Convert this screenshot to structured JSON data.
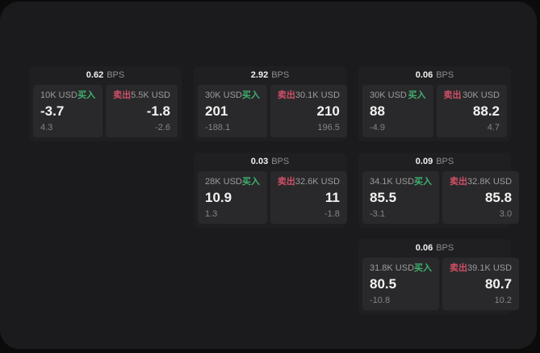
{
  "labels": {
    "bps_unit": "BPS",
    "buy": "买入",
    "sell": "卖出"
  },
  "colors": {
    "outer_background": "#0b0b0c",
    "page_background": "#1b1b1d",
    "card_background": "#1f1f21",
    "panel_background": "#29292b",
    "buy_accent": "#3fb06e",
    "sell_accent": "#d05068",
    "value_text": "#f2f2f2",
    "label_text": "#9b9b9b",
    "sub_text": "#858585"
  },
  "cards": [
    {
      "bps": "0.62",
      "buy": {
        "amount": "10K USD",
        "price": "-3.7",
        "delta": "4.3"
      },
      "sell": {
        "amount": "5.5K USD",
        "price": "-1.8",
        "delta": "-2.6"
      }
    },
    {
      "bps": "2.92",
      "buy": {
        "amount": "30K USD",
        "price": "201",
        "delta": "-188.1"
      },
      "sell": {
        "amount": "30.1K USD",
        "price": "210",
        "delta": "196.5"
      }
    },
    {
      "bps": "0.06",
      "buy": {
        "amount": "30K USD",
        "price": "88",
        "delta": "-4.9"
      },
      "sell": {
        "amount": "30K USD",
        "price": "88.2",
        "delta": "4.7"
      }
    },
    {
      "bps": "0.03",
      "buy": {
        "amount": "28K USD",
        "price": "10.9",
        "delta": "1.3"
      },
      "sell": {
        "amount": "32.6K USD",
        "price": "11",
        "delta": "-1.8"
      }
    },
    {
      "bps": "0.09",
      "buy": {
        "amount": "34.1K USD",
        "price": "85.5",
        "delta": "-3.1"
      },
      "sell": {
        "amount": "32.8K USD",
        "price": "85.8",
        "delta": "3.0"
      }
    },
    {
      "bps": "0.06",
      "buy": {
        "amount": "31.8K USD",
        "price": "80.5",
        "delta": "-10.8"
      },
      "sell": {
        "amount": "39.1K USD",
        "price": "80.7",
        "delta": "10.2"
      }
    }
  ]
}
